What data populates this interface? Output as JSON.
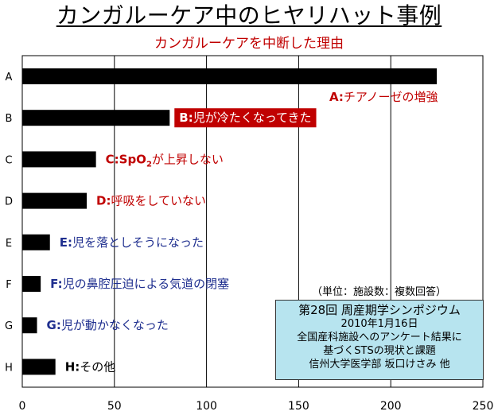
{
  "page": {
    "title": "カンガルーケア中のヒヤリハット事例",
    "unit_note": "（単位：施設数：複数回答）",
    "info_box": {
      "line1": "第28回 周産期学シンポジウム",
      "line2": "2010年1月16日",
      "line3": "全国産科施設へのアンケート結果に",
      "line4": "基づくSTSの現状と課題",
      "line5": "信州大学医学部 坂口けさみ 他",
      "background": "#b7e4ef"
    }
  },
  "chart_data": {
    "type": "bar",
    "orientation": "horizontal",
    "title": "カンガルーケアを中断した理由",
    "categories": [
      "A",
      "B",
      "C",
      "D",
      "E",
      "F",
      "G",
      "H"
    ],
    "values": [
      225,
      80,
      40,
      35,
      15,
      10,
      8,
      18
    ],
    "data_labels": [
      "A:チアノーゼの増強",
      "B:児が冷たくなってきた",
      "C:SpO2が上昇しない",
      "D:呼吸をしていない",
      "E:児を落としそうになった",
      "F:児の鼻腔圧迫による気道の閉塞",
      "G:児が動かなくなった",
      "H:その他"
    ],
    "label_colors": [
      "#c00000",
      "#ffffff",
      "#c00000",
      "#c00000",
      "#1f2f8f",
      "#1f2f8f",
      "#1f2f8f",
      "#000000"
    ],
    "label_backgrounds": [
      null,
      "#c00000",
      null,
      null,
      null,
      null,
      null,
      null
    ],
    "bar_color": "#000000",
    "xlim": [
      0,
      250
    ],
    "xticks": [
      0,
      50,
      100,
      150,
      200,
      250
    ],
    "grid": true
  }
}
